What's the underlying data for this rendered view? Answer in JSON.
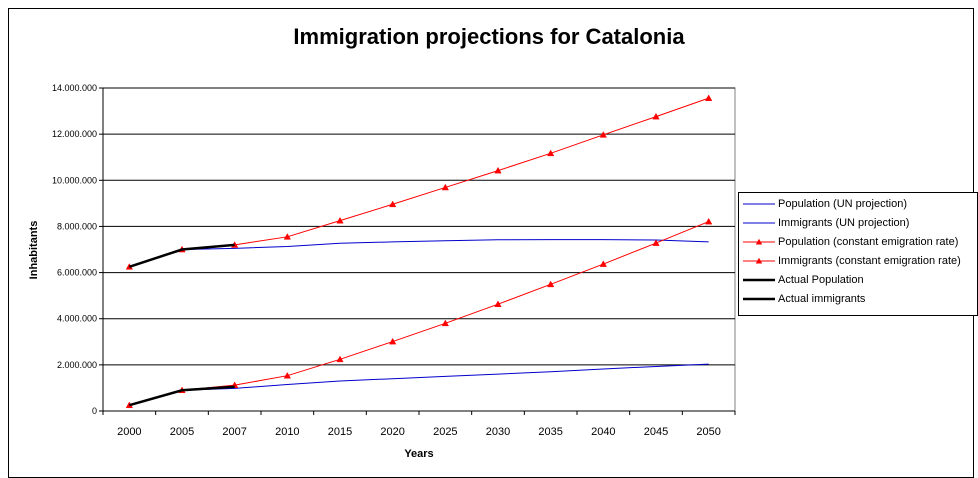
{
  "chart_data": {
    "type": "line",
    "title": "Immigration projections for Catalonia",
    "xlabel": "Years",
    "ylabel": "Inhabitants",
    "ylim": [
      0,
      14000000
    ],
    "y_ticks": [
      "0",
      "2.000.000",
      "4.000.000",
      "6.000.000",
      "8.000.000",
      "10.000.000",
      "12.000.000",
      "14.000.000"
    ],
    "categories": [
      "2000",
      "2005",
      "2007",
      "2010",
      "2015",
      "2020",
      "2025",
      "2030",
      "2035",
      "2040",
      "2045",
      "2050"
    ],
    "grid": "horizontal",
    "legend_position": "right",
    "series": [
      {
        "name": "Population (UN projection)",
        "color": "#0000cc",
        "marker": "none",
        "width": 1,
        "values": [
          6250000,
          7000000,
          7050000,
          7130000,
          7270000,
          7330000,
          7380000,
          7420000,
          7430000,
          7430000,
          7410000,
          7330000
        ]
      },
      {
        "name": "Immigrants (UN projection)",
        "color": "#0000cc",
        "marker": "none",
        "width": 1,
        "values": [
          250000,
          900000,
          980000,
          1150000,
          1300000,
          1400000,
          1500000,
          1600000,
          1700000,
          1820000,
          1930000,
          2030000
        ]
      },
      {
        "name": "Population (constant emigration rate)",
        "color": "#ff0000",
        "marker": "triangle",
        "width": 1,
        "values": [
          6250000,
          7000000,
          7200000,
          7550000,
          8250000,
          8960000,
          9690000,
          10420000,
          11170000,
          11970000,
          12760000,
          13560000
        ]
      },
      {
        "name": "Immigrants (constant emigration rate)",
        "color": "#ff0000",
        "marker": "triangle",
        "width": 1,
        "values": [
          250000,
          900000,
          1120000,
          1530000,
          2240000,
          3010000,
          3800000,
          4630000,
          5490000,
          6370000,
          7280000,
          8210000
        ]
      },
      {
        "name": "Actual Population",
        "color": "#000000",
        "marker": "none",
        "width": 2.5,
        "values": [
          6250000,
          7000000,
          7200000,
          null,
          null,
          null,
          null,
          null,
          null,
          null,
          null,
          null
        ]
      },
      {
        "name": "Actual immigrants",
        "color": "#000000",
        "marker": "none",
        "width": 2.5,
        "values": [
          250000,
          900000,
          1050000,
          null,
          null,
          null,
          null,
          null,
          null,
          null,
          null,
          null
        ]
      }
    ]
  }
}
